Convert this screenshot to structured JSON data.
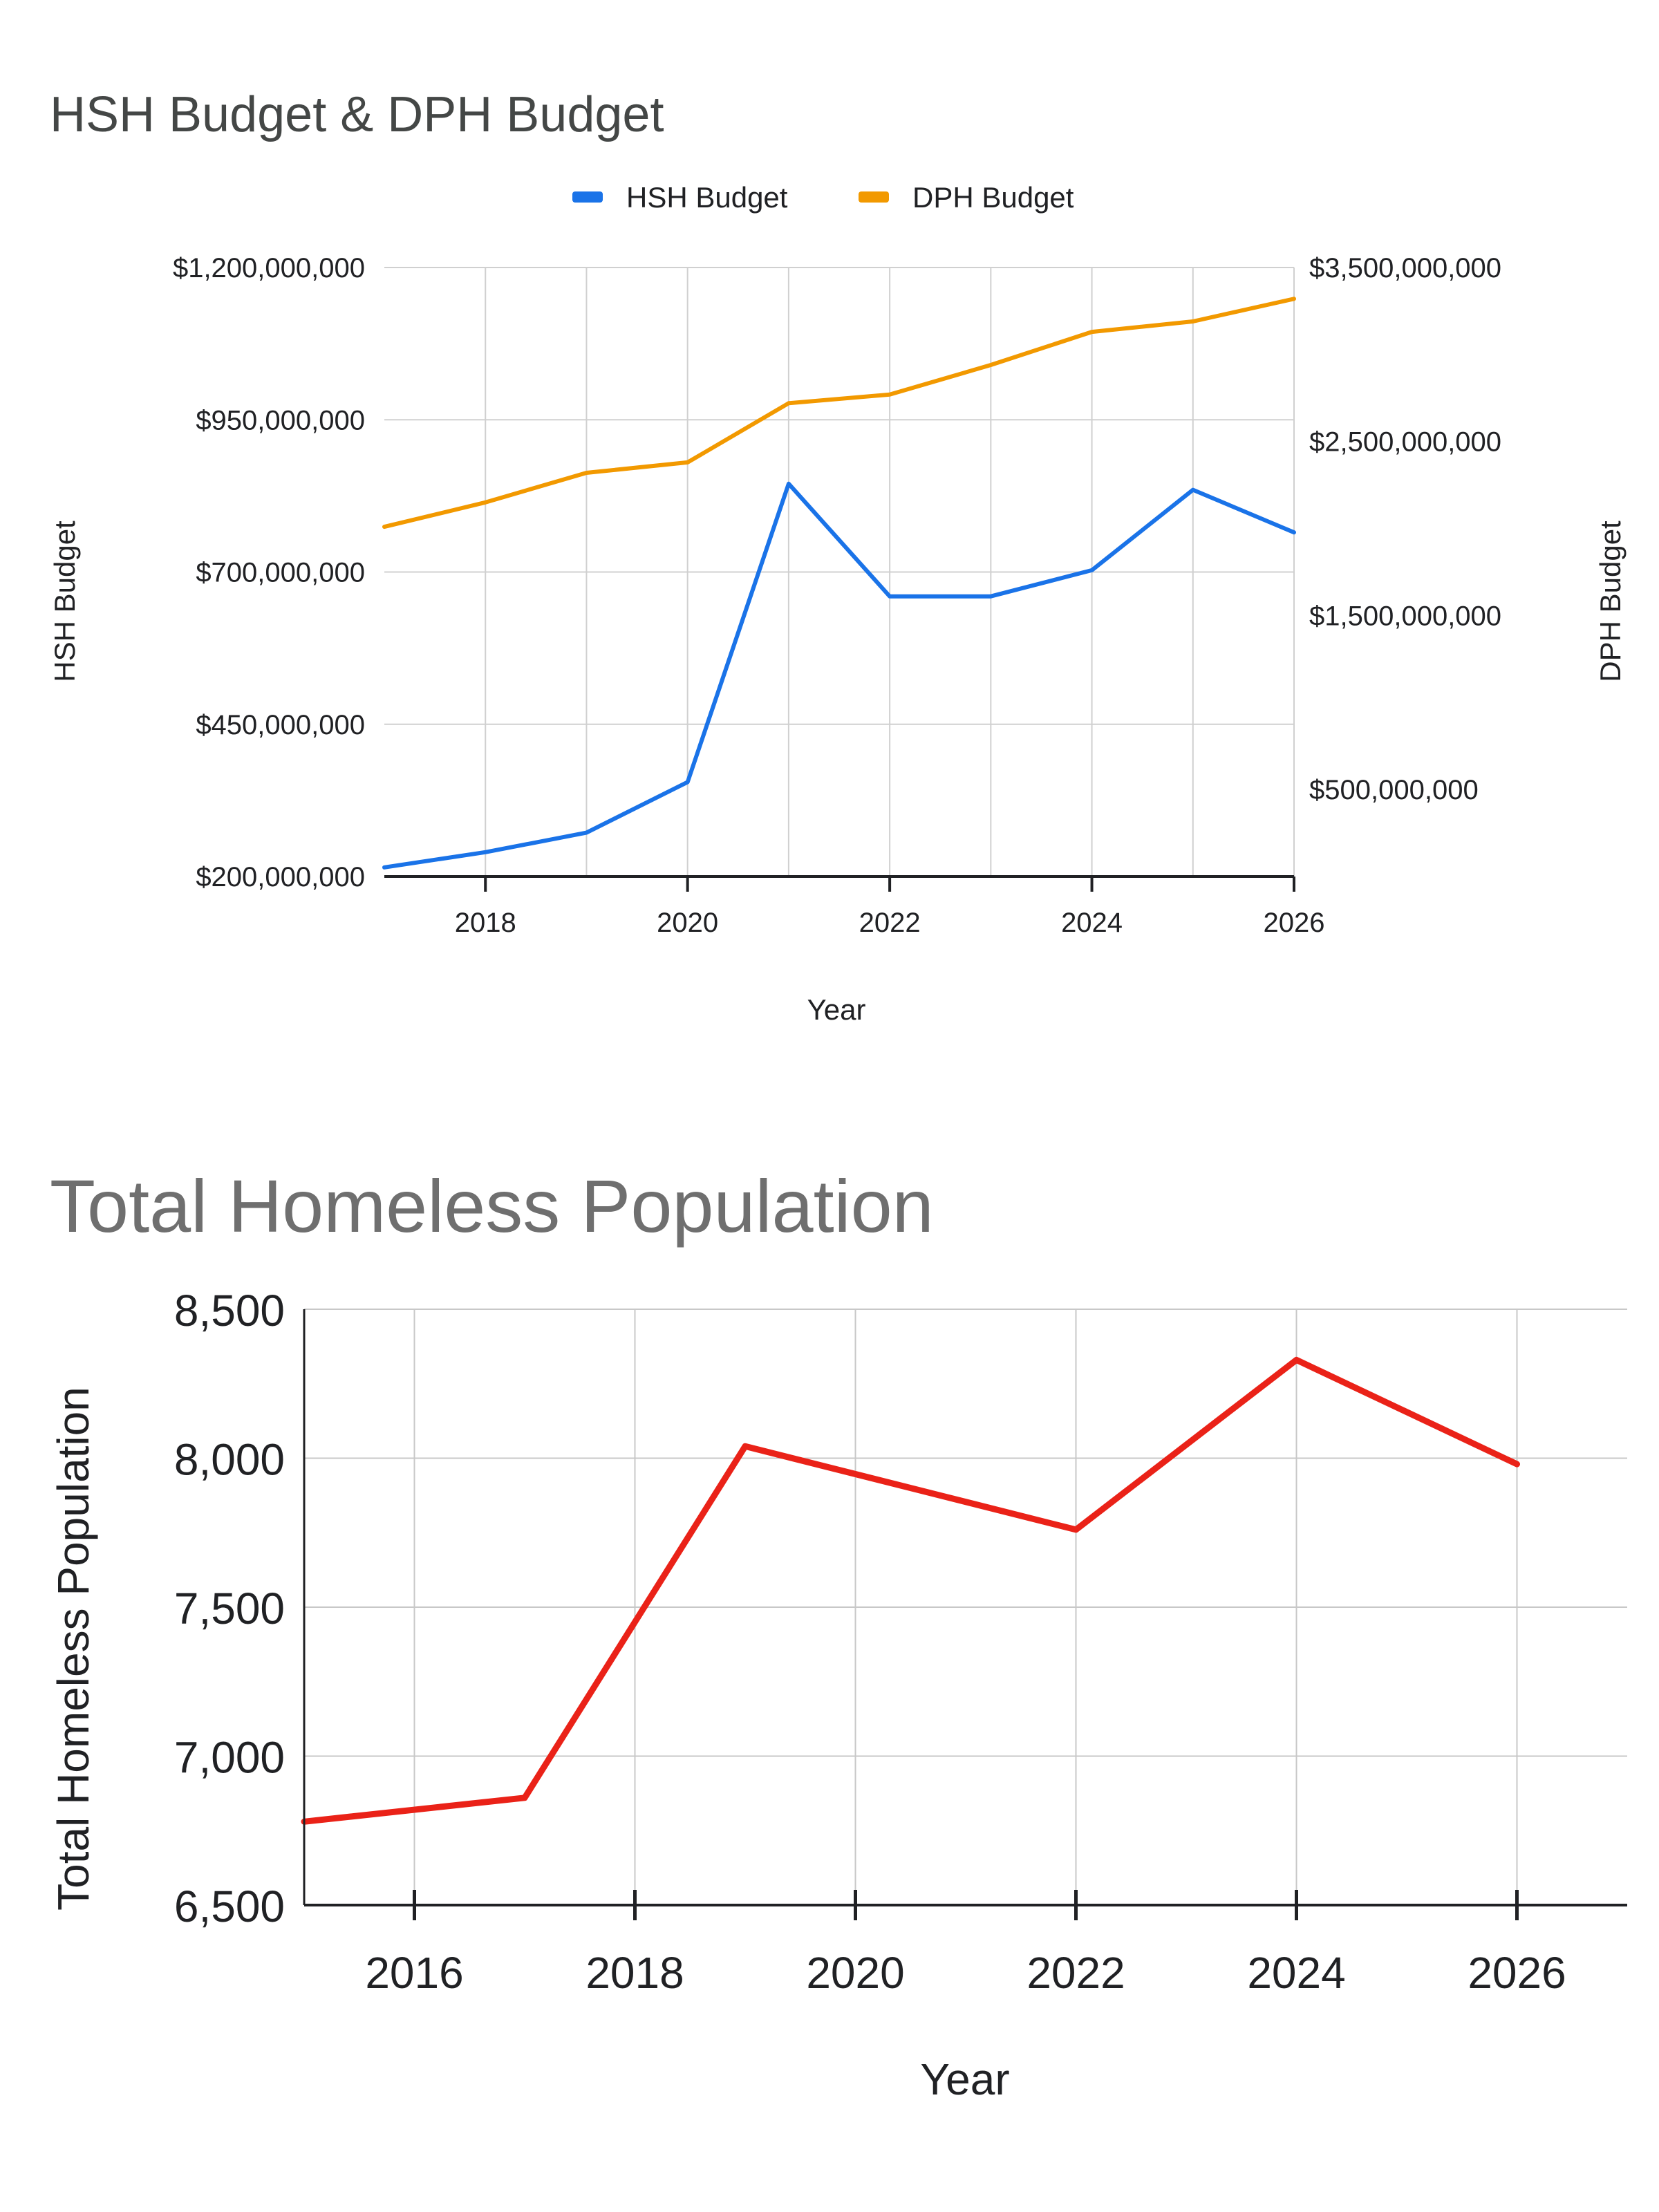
{
  "chart_data": [
    {
      "type": "line",
      "title": "HSH Budget & DPH Budget",
      "xlabel": "Year",
      "ylabel_left": "HSH Budget",
      "ylabel_right": "DPH Budget",
      "x_ticks": [
        "2018",
        "2020",
        "2022",
        "2024",
        "2026"
      ],
      "xlim": [
        2017,
        2026
      ],
      "ylim_left": [
        200000000,
        1200000000
      ],
      "yticks_left": [
        "$1,200,000,000",
        "$950,000,000",
        "$700,000,000",
        "$450,000,000",
        "$200,000,000"
      ],
      "ylim_right": [
        0,
        3500000000
      ],
      "yticks_right": [
        "$3,500,000,000",
        "$2,500,000,000",
        "$1,500,000,000",
        "$500,000,000"
      ],
      "legend_position": "top",
      "grid": true,
      "series": [
        {
          "name": "HSH Budget",
          "axis": "left",
          "color": "#1a73e8",
          "x": [
            2017,
            2018,
            2019,
            2020,
            2021,
            2022,
            2023,
            2024,
            2025,
            2026
          ],
          "values": [
            215000000,
            240000000,
            272000000,
            355000000,
            845000000,
            660000000,
            660000000,
            703000000,
            835000000,
            765000000
          ]
        },
        {
          "name": "DPH Budget",
          "axis": "right",
          "color": "#f29900",
          "x": [
            2017,
            2018,
            2019,
            2020,
            2021,
            2022,
            2023,
            2024,
            2025,
            2026
          ],
          "values": [
            2010000000,
            2150000000,
            2320000000,
            2380000000,
            2720000000,
            2770000000,
            2940000000,
            3130000000,
            3190000000,
            3320000000
          ]
        }
      ]
    },
    {
      "type": "line",
      "title": "Total Homeless Population",
      "xlabel": "Year",
      "ylabel": "Total Homeless Population",
      "x_ticks": [
        "2016",
        "2018",
        "2020",
        "2022",
        "2024",
        "2026"
      ],
      "xlim": [
        2015,
        2027
      ],
      "ylim": [
        6500,
        8500
      ],
      "yticks": [
        "8,500",
        "8,000",
        "7,500",
        "7,000",
        "6,500"
      ],
      "grid": true,
      "series": [
        {
          "color": "#ea2218",
          "x": [
            2015,
            2017,
            2019,
            2022,
            2024,
            2026
          ],
          "values": [
            6780,
            6860,
            8040,
            7760,
            8330,
            7980
          ]
        }
      ]
    }
  ]
}
